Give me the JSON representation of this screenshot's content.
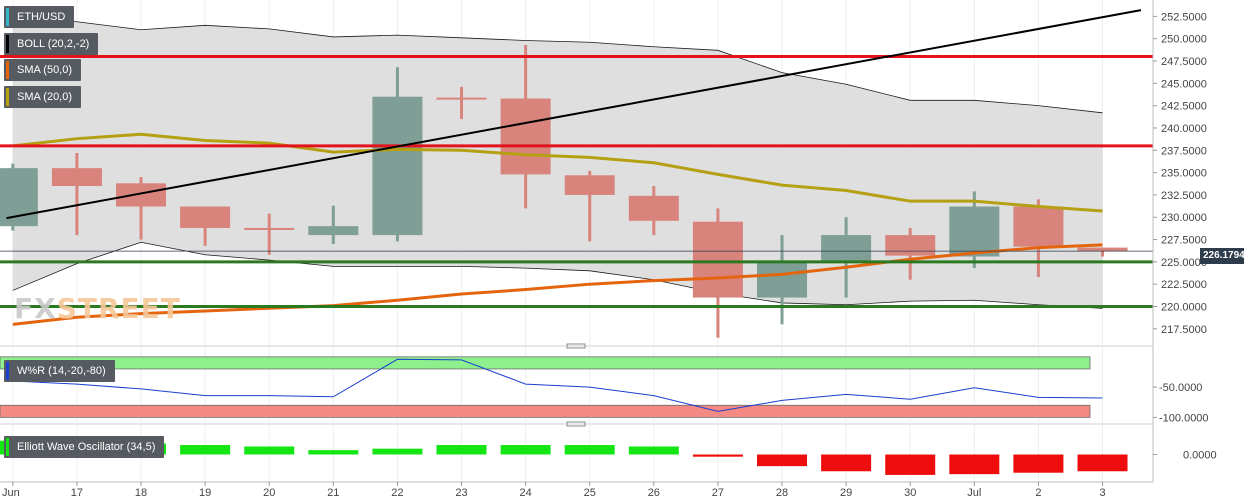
{
  "legends": {
    "pair": "ETH/USD",
    "boll": "BOLL (20,2,-2)",
    "sma50": "SMA (50,0)",
    "sma20": "SMA (20,0)",
    "wr": "W%R (14,-20,-80)",
    "ewo": "Elliott Wave Oscillator (34,5)"
  },
  "watermark": {
    "a": "FX",
    "b": "STREET"
  },
  "current_price": "226.17942",
  "colors": {
    "bull": "#7e9e96",
    "bear": "#d8847c",
    "sma50": "#e5650f",
    "sma20": "#b5a014",
    "resistance": "#e3131b",
    "support": "#2b7a1f",
    "trendline": "#000000",
    "boll_fill": "#d9d9d9",
    "ewo_pos": "#14e614",
    "ewo_neg": "#ee0d0d",
    "wr_line": "#1b3fd1",
    "wr_overbought": "#8df08d",
    "wr_oversold": "#f58a84"
  },
  "chart_data": [
    {
      "type": "candlestick",
      "title": "ETH/USD",
      "x": [
        "Jun",
        "17",
        "18",
        "19",
        "20",
        "21",
        "22",
        "23",
        "24",
        "25",
        "26",
        "27",
        "28",
        "29",
        "30",
        "Jul",
        "2",
        "3"
      ],
      "ohlc": [
        [
          229.0,
          236.0,
          228.5,
          235.5
        ],
        [
          235.5,
          237.2,
          228.0,
          233.5
        ],
        [
          233.8,
          234.5,
          227.5,
          231.2
        ],
        [
          231.2,
          231.2,
          226.8,
          228.8
        ],
        [
          228.8,
          230.4,
          225.8,
          228.7
        ],
        [
          228.0,
          231.3,
          227.0,
          229.0
        ],
        [
          228.0,
          246.8,
          227.3,
          243.5
        ],
        [
          243.4,
          244.6,
          241.0,
          243.2
        ],
        [
          243.3,
          249.3,
          231.0,
          234.8
        ],
        [
          234.7,
          235.2,
          227.3,
          232.5
        ],
        [
          232.4,
          233.5,
          228.0,
          229.6
        ],
        [
          229.5,
          231.0,
          216.5,
          221.0
        ],
        [
          221.0,
          228.0,
          218.0,
          225.0
        ],
        [
          225.0,
          230.0,
          221.0,
          228.0
        ],
        [
          228.0,
          228.8,
          223.0,
          225.7
        ],
        [
          225.6,
          232.9,
          224.3,
          231.2
        ],
        [
          231.2,
          232.0,
          223.3,
          226.7
        ],
        [
          226.6,
          226.6,
          225.6,
          226.2
        ]
      ],
      "y_ticks": [
        "217.5000",
        "220.0000",
        "222.5000",
        "225.0000",
        "227.5000",
        "230.0000",
        "232.5000",
        "235.0000",
        "237.5000",
        "240.0000",
        "242.5000",
        "245.0000",
        "247.5000",
        "250.0000",
        "252.5000"
      ],
      "ylim": [
        215.8,
        254.0
      ],
      "boll_upper": [
        252.2,
        251.9,
        251.0,
        251.5,
        251.1,
        250.2,
        250.4,
        250.1,
        249.8,
        249.6,
        249.1,
        248.7,
        246.2,
        244.9,
        243.1,
        243.1,
        242.5,
        241.7
      ],
      "boll_lower": [
        221.8,
        224.8,
        227.2,
        225.8,
        225.2,
        224.5,
        224.5,
        224.5,
        224.3,
        224.0,
        223.0,
        221.5,
        220.4,
        220.2,
        220.6,
        220.7,
        220.2,
        219.8
      ],
      "sma20": [
        238.0,
        238.8,
        239.3,
        238.6,
        238.3,
        237.3,
        237.6,
        237.5,
        237.0,
        236.7,
        236.1,
        234.8,
        233.6,
        233.0,
        231.8,
        231.8,
        231.2,
        230.7
      ],
      "sma50": [
        218.0,
        218.8,
        219.2,
        219.5,
        219.8,
        220.1,
        220.7,
        221.4,
        221.9,
        222.5,
        222.9,
        223.2,
        223.6,
        224.4,
        225.3,
        226.0,
        226.6,
        226.9
      ],
      "resistance": [
        248.0,
        238.0
      ],
      "support": [
        225.0,
        220.0
      ],
      "trendline": [
        [
          -0.1,
          229.9
        ],
        [
          17.6,
          253.2
        ]
      ]
    },
    {
      "type": "line",
      "title": "W%R (14,-20,-80)",
      "x": [
        "Jun",
        "17",
        "18",
        "19",
        "20",
        "21",
        "22",
        "23",
        "24",
        "25",
        "26",
        "27",
        "28",
        "29",
        "30",
        "Jul",
        "2",
        "3"
      ],
      "values": [
        -40,
        -45,
        -53,
        -64,
        -64,
        -66,
        -4,
        -5,
        -45,
        -50,
        -64,
        -90,
        -72,
        -62,
        -70,
        -51,
        -67,
        -68
      ],
      "y_ticks": [
        "-50.0000",
        "-100.0000"
      ],
      "ylim": [
        -106,
        8
      ],
      "overbought": -20,
      "oversold": -80
    },
    {
      "type": "bar",
      "title": "Elliott Wave Oscillator (34,5)",
      "x": [
        "Jun",
        "17",
        "18",
        "19",
        "20",
        "21",
        "22",
        "23",
        "24",
        "25",
        "26",
        "27",
        "28",
        "29",
        "30",
        "Jul",
        "2",
        "3"
      ],
      "values": [
        1.9,
        1.7,
        1.5,
        1.3,
        1.1,
        0.6,
        0.8,
        1.3,
        1.3,
        1.3,
        1.1,
        -0.3,
        -1.6,
        -2.3,
        -2.8,
        -2.7,
        -2.5,
        -2.3
      ],
      "y_ticks": [
        "0.0000"
      ],
      "ylim": [
        -3.5,
        3.5
      ]
    }
  ]
}
